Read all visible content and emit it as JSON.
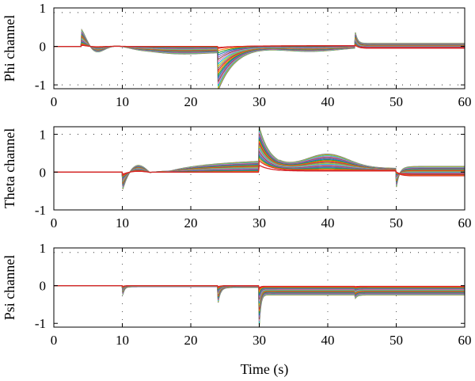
{
  "chart_data": [
    {
      "type": "line",
      "ylabel": "Phi channel",
      "xlim": [
        0,
        60
      ],
      "ylim": [
        -1.1,
        1
      ],
      "xticks": [
        "0",
        "10",
        "20",
        "30",
        "40",
        "50",
        "60"
      ],
      "yticks": [
        "-1",
        "0",
        "1"
      ],
      "grid": "dotted",
      "n_series": 20,
      "events": [
        {
          "t": 4,
          "spike": [
            0.05,
            0.45
          ],
          "trough": [
            -0.03,
            -0.28
          ],
          "t_trough": 6.5
        },
        {
          "t": 24,
          "start": [
            -0.02,
            -1.15
          ],
          "t_settle": 31
        },
        {
          "t": 44,
          "spike": [
            0.05,
            0.4
          ]
        }
      ],
      "tail_level": [
        0.0,
        0.08
      ],
      "reference_lines": [
        0.88,
        -1
      ]
    },
    {
      "type": "line",
      "ylabel": "Theta channel",
      "xlim": [
        0,
        60
      ],
      "ylim": [
        -1,
        1.2
      ],
      "xticks": [
        "0",
        "10",
        "20",
        "30",
        "40",
        "50",
        "60"
      ],
      "yticks": [
        "-1",
        "0",
        "1"
      ],
      "grid": "dotted",
      "n_series": 20,
      "events": [
        {
          "t": 10,
          "start": [
            -0.1,
            -0.5
          ],
          "peak": [
            0.05,
            0.25
          ],
          "t_peak": 14
        },
        {
          "t": 30,
          "start": [
            0.3,
            1.2
          ],
          "t_settle": 35
        },
        {
          "t": 50,
          "start": [
            0.0,
            -0.45
          ]
        }
      ],
      "tail_level": [
        -0.1,
        0.15
      ],
      "reference_lines": [
        1
      ]
    },
    {
      "type": "line",
      "ylabel": "Psi channel",
      "xlim": [
        0,
        60
      ],
      "ylim": [
        -1.1,
        1
      ],
      "xticks": [
        "0",
        "10",
        "20",
        "30",
        "40",
        "50",
        "60"
      ],
      "yticks": [
        "-1",
        "0",
        "1"
      ],
      "grid": "dotted",
      "n_series": 20,
      "events": [
        {
          "t": 10,
          "dip": [
            -0.05,
            -0.3
          ]
        },
        {
          "t": 24,
          "dip": [
            -0.05,
            -0.4
          ]
        },
        {
          "t": 30,
          "dip": [
            -0.1,
            -1.05
          ],
          "tail": [
            -0.05,
            -0.25
          ]
        },
        {
          "t": 44,
          "dip": [
            -0.05,
            -0.1
          ]
        }
      ],
      "tail_level": [
        -0.05,
        -0.25
      ],
      "reference_lines": [
        0.88
      ]
    }
  ],
  "xlabel": "Time (s)",
  "colors": [
    "#d62728",
    "#ff7f0e",
    "#2ca02c",
    "#1f77b4",
    "#9467bd",
    "#8c564b",
    "#e377c2",
    "#17becf",
    "#bcbd22",
    "#7f7f7f"
  ]
}
